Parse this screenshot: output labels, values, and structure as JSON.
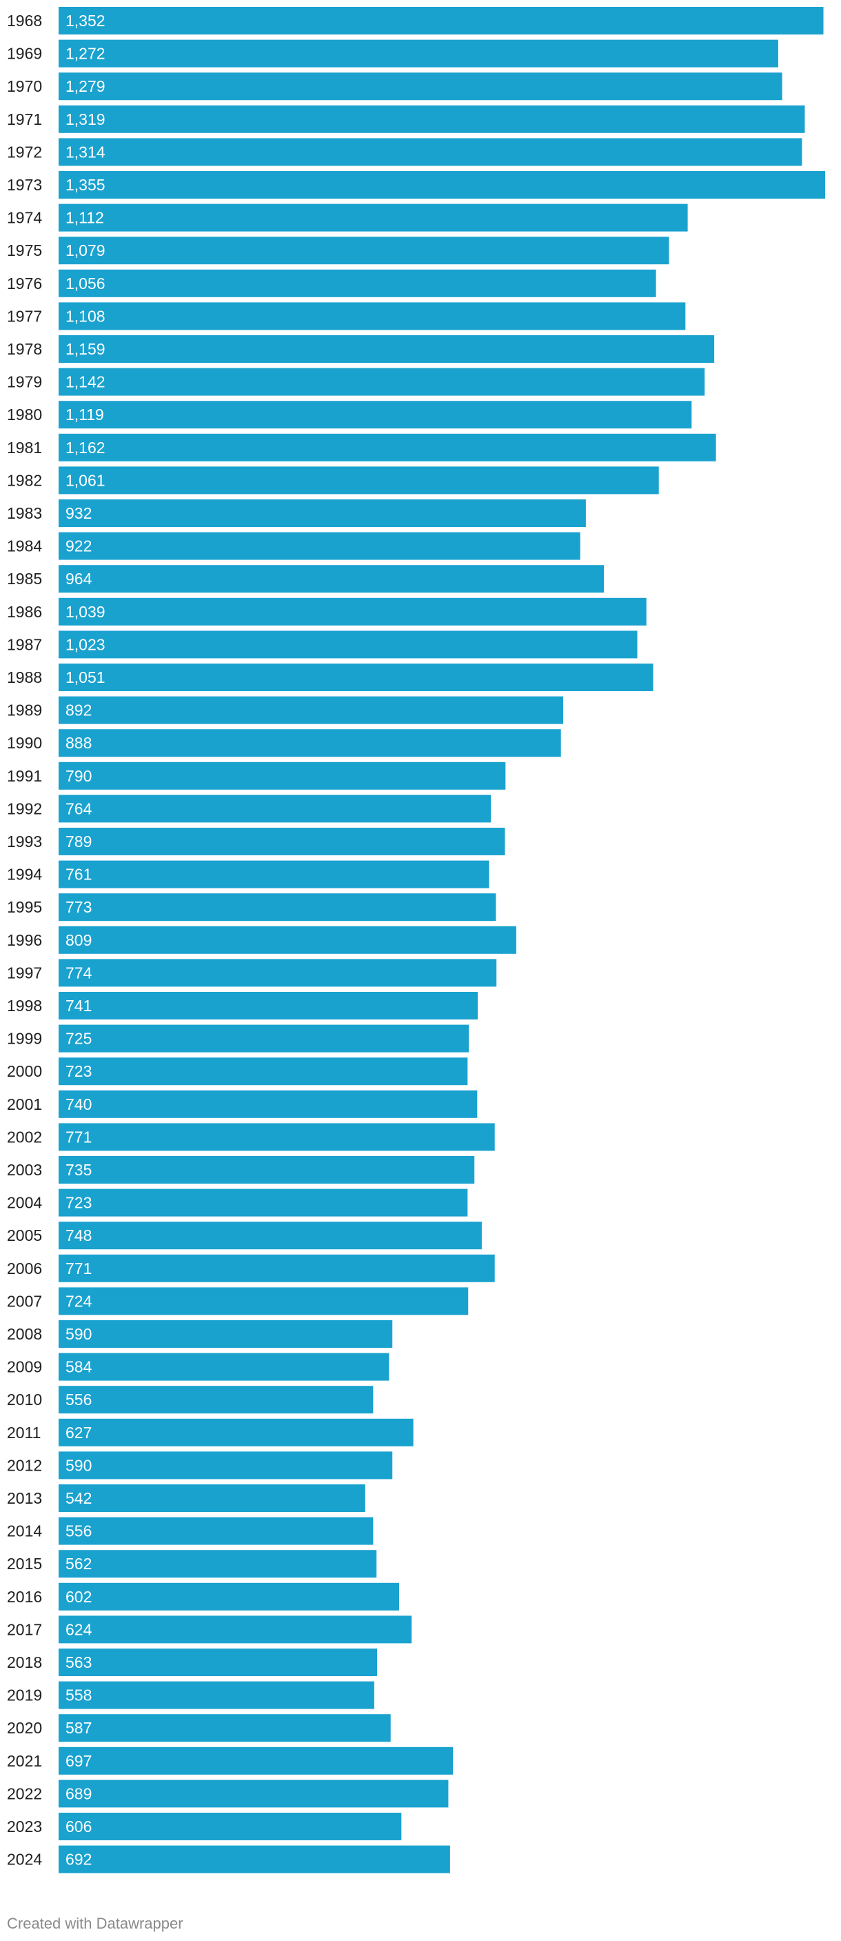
{
  "chart_data": {
    "type": "bar",
    "orientation": "horizontal",
    "title": "",
    "xlabel": "",
    "ylabel": "",
    "xlim": [
      0,
      1355
    ],
    "grid": false,
    "bar_color": "#1aa2cf",
    "categories": [
      "1968",
      "1969",
      "1970",
      "1971",
      "1972",
      "1973",
      "1974",
      "1975",
      "1976",
      "1977",
      "1978",
      "1979",
      "1980",
      "1981",
      "1982",
      "1983",
      "1984",
      "1985",
      "1986",
      "1987",
      "1988",
      "1989",
      "1990",
      "1991",
      "1992",
      "1993",
      "1994",
      "1995",
      "1996",
      "1997",
      "1998",
      "1999",
      "2000",
      "2001",
      "2002",
      "2003",
      "2004",
      "2005",
      "2006",
      "2007",
      "2008",
      "2009",
      "2010",
      "2011",
      "2012",
      "2013",
      "2014",
      "2015",
      "2016",
      "2017",
      "2018",
      "2019",
      "2020",
      "2021",
      "2022",
      "2023",
      "2024"
    ],
    "values": [
      1352,
      1272,
      1279,
      1319,
      1314,
      1355,
      1112,
      1079,
      1056,
      1108,
      1159,
      1142,
      1119,
      1162,
      1061,
      932,
      922,
      964,
      1039,
      1023,
      1051,
      892,
      888,
      790,
      764,
      789,
      761,
      773,
      809,
      774,
      741,
      725,
      723,
      740,
      771,
      735,
      723,
      748,
      771,
      724,
      590,
      584,
      556,
      627,
      590,
      542,
      556,
      562,
      602,
      624,
      563,
      558,
      587,
      697,
      689,
      606,
      692
    ],
    "value_labels": [
      "1,352",
      "1,272",
      "1,279",
      "1,319",
      "1,314",
      "1,355",
      "1,112",
      "1,079",
      "1,056",
      "1,108",
      "1,159",
      "1,142",
      "1,119",
      "1,162",
      "1,061",
      "932",
      "922",
      "964",
      "1,039",
      "1,023",
      "1,051",
      "892",
      "888",
      "790",
      "764",
      "789",
      "761",
      "773",
      "809",
      "774",
      "741",
      "725",
      "723",
      "740",
      "771",
      "735",
      "723",
      "748",
      "771",
      "724",
      "590",
      "584",
      "556",
      "627",
      "590",
      "542",
      "556",
      "562",
      "602",
      "624",
      "563",
      "558",
      "587",
      "697",
      "689",
      "606",
      "692"
    ]
  },
  "footer": {
    "credit": "Created with Datawrapper"
  }
}
